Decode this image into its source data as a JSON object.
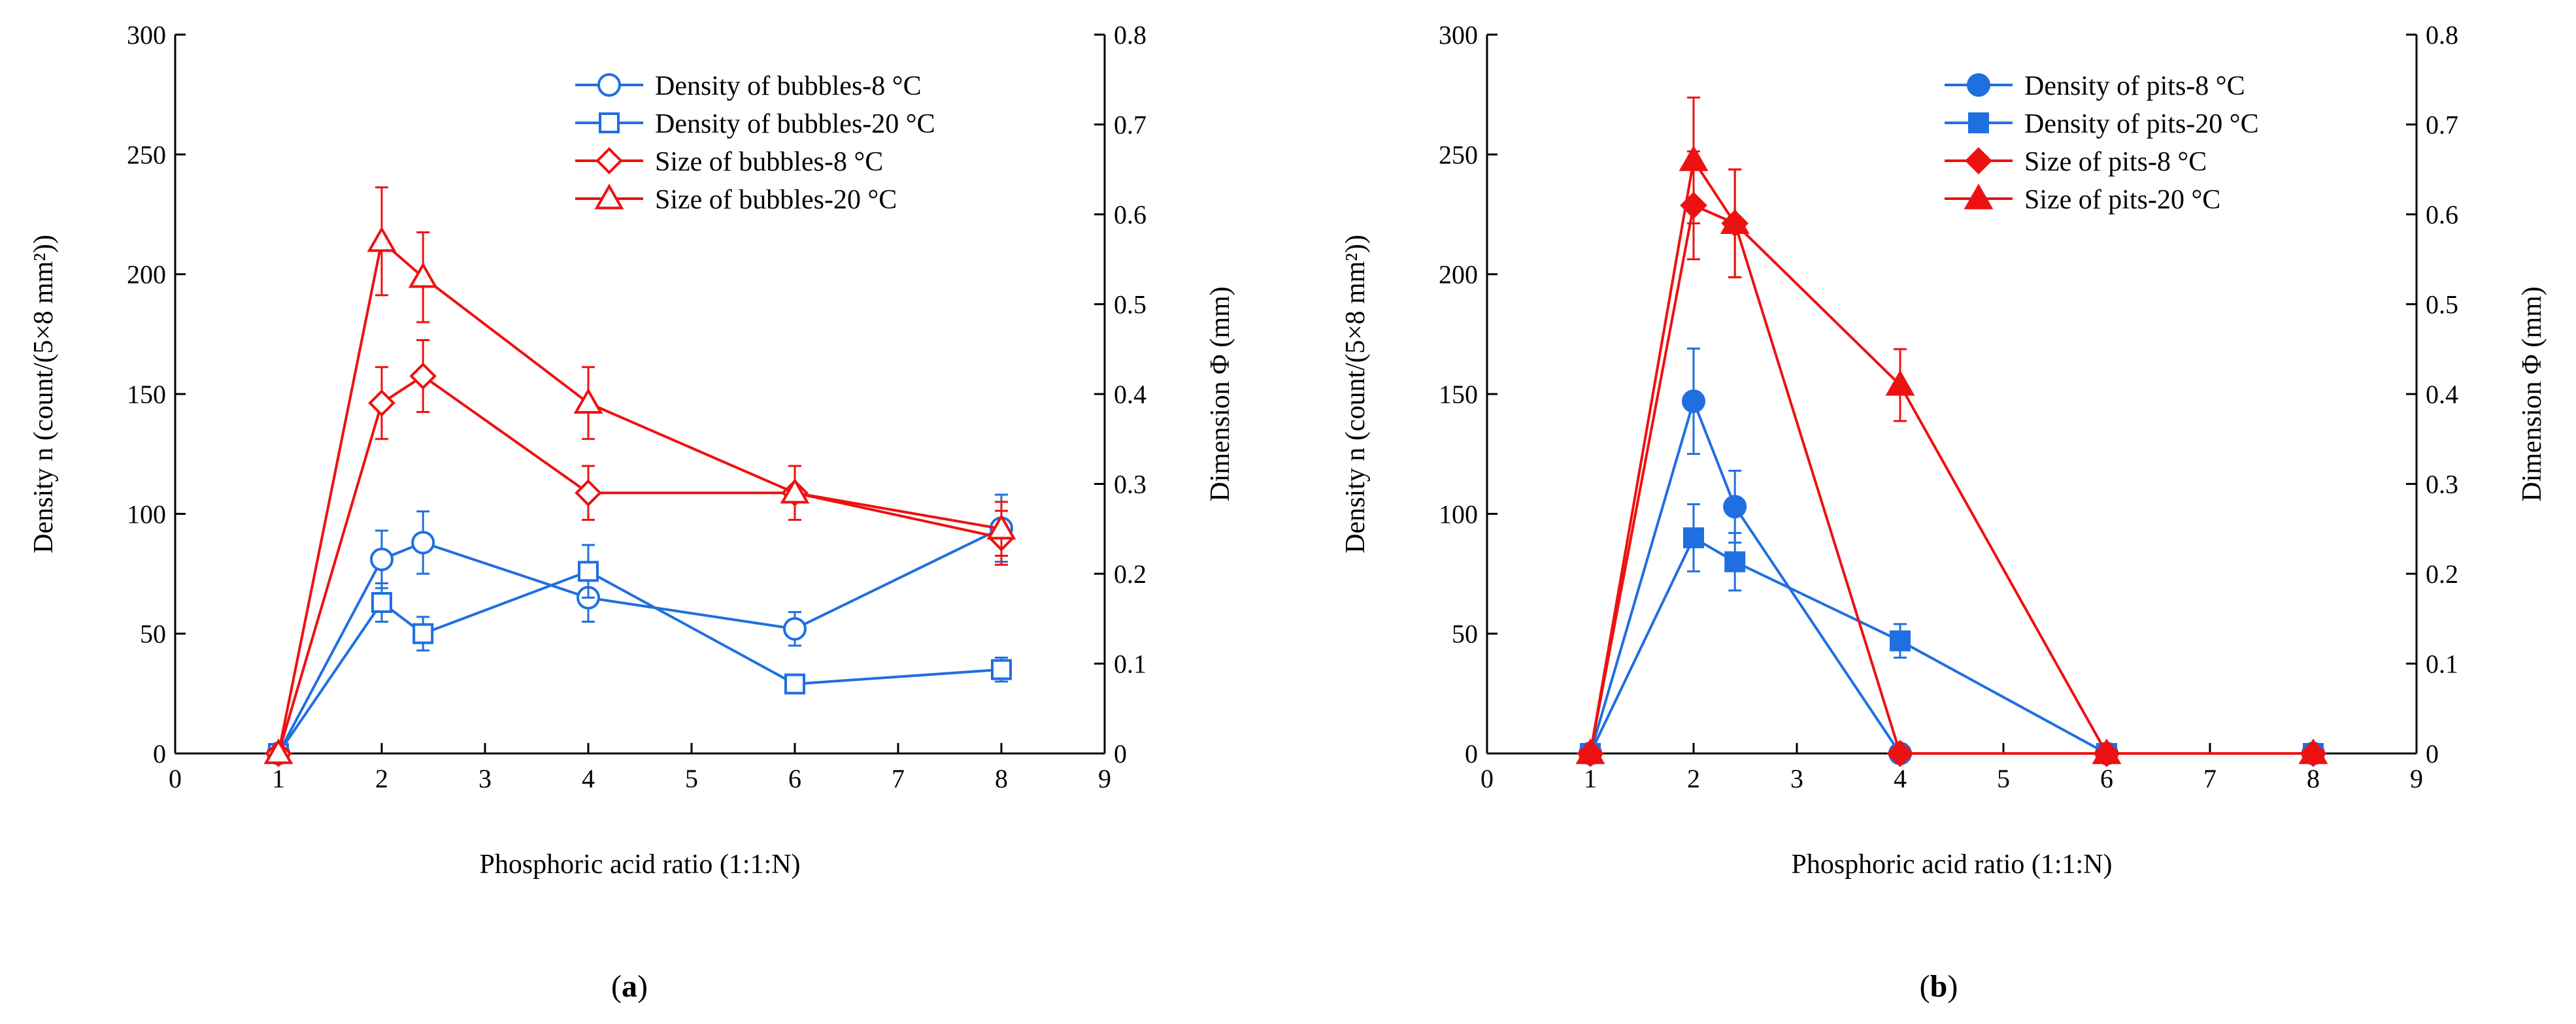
{
  "figure": {
    "panels": [
      {
        "label_open": "(",
        "label_letter": "a",
        "label_close": ")",
        "xlabel": "Phosphoric acid ratio (1:1:N)",
        "ylabel_left": "Density n (count/(5×8 mm²))",
        "ylabel_right": "Dimension Φ (mm)",
        "x_ticks": [
          "0",
          "1",
          "2",
          "3",
          "4",
          "5",
          "6",
          "7",
          "8",
          "9"
        ],
        "y_left_ticks": [
          "0",
          "50",
          "100",
          "150",
          "200",
          "250",
          "300"
        ],
        "y_right_ticks": [
          "0",
          "0.1",
          "0.2",
          "0.3",
          "0.4",
          "0.5",
          "0.6",
          "0.7",
          "0.8"
        ]
      },
      {
        "label_open": "(",
        "label_letter": "b",
        "label_close": ")",
        "xlabel": "Phosphoric acid ratio (1:1:N)",
        "ylabel_left": "Density n (count/(5×8 mm²))",
        "ylabel_right": "Dimension Φ (mm)",
        "x_ticks": [
          "0",
          "1",
          "2",
          "3",
          "4",
          "5",
          "6",
          "7",
          "8",
          "9"
        ],
        "y_left_ticks": [
          "0",
          "50",
          "100",
          "150",
          "200",
          "250",
          "300"
        ],
        "y_right_ticks": [
          "0",
          "0.1",
          "0.2",
          "0.3",
          "0.4",
          "0.5",
          "0.6",
          "0.7",
          "0.8"
        ]
      }
    ]
  },
  "colors": {
    "blue": "#1f6fe0",
    "red": "#ee1111",
    "axis": "#000000"
  },
  "chart_data": [
    {
      "type": "line",
      "xlabel": "Phosphoric acid ratio (1:1:N)",
      "ylabel": "Density n (count/(5×8 mm²))",
      "y2label": "Dimension Φ (mm)",
      "xlim": [
        0,
        9
      ],
      "ylim": [
        0,
        300
      ],
      "y2lim": [
        0,
        0.8
      ],
      "grid": false,
      "legend": "top-right",
      "series": [
        {
          "name": "Density of bubbles-8 °C",
          "axis": "left",
          "marker": "circle",
          "filled": false,
          "color": "blue",
          "x": [
            1,
            2,
            2.4,
            4,
            6,
            8
          ],
          "y": [
            0,
            81,
            88,
            65,
            52,
            94
          ],
          "err": [
            0,
            12,
            13,
            10,
            7,
            14
          ]
        },
        {
          "name": "Density of bubbles-20 °C",
          "axis": "left",
          "marker": "square",
          "filled": false,
          "color": "blue",
          "x": [
            1,
            2,
            2.4,
            4,
            6,
            8
          ],
          "y": [
            0,
            63,
            50,
            76,
            29,
            35
          ],
          "err": [
            0,
            8,
            7,
            11,
            3,
            5
          ]
        },
        {
          "name": "Size of bubbles-8 °C",
          "axis": "right",
          "marker": "diamond",
          "filled": false,
          "color": "red",
          "x": [
            1,
            2,
            2.4,
            4,
            6,
            8
          ],
          "y": [
            0,
            0.39,
            0.42,
            0.29,
            0.29,
            0.24
          ],
          "err": [
            0,
            0.04,
            0.04,
            0.03,
            0.03,
            0.03
          ]
        },
        {
          "name": "Size of bubbles-20 °C",
          "axis": "right",
          "marker": "triangle",
          "filled": false,
          "color": "red",
          "x": [
            1,
            2,
            2.4,
            4,
            6,
            8
          ],
          "y": [
            0,
            0.57,
            0.53,
            0.39,
            0.29,
            0.25
          ],
          "err": [
            0,
            0.06,
            0.05,
            0.04,
            0.03,
            0.03
          ]
        }
      ]
    },
    {
      "type": "line",
      "xlabel": "Phosphoric acid ratio (1:1:N)",
      "ylabel": "Density n (count/(5×8 mm²))",
      "y2label": "Dimension Φ (mm)",
      "xlim": [
        0,
        9
      ],
      "ylim": [
        0,
        300
      ],
      "y2lim": [
        0,
        0.8
      ],
      "grid": false,
      "legend": "top-right",
      "series": [
        {
          "name": "Density of pits-8 °C",
          "axis": "left",
          "marker": "circle",
          "filled": true,
          "color": "blue",
          "x": [
            1,
            2,
            2.4,
            4,
            6,
            8
          ],
          "y": [
            0,
            147,
            103,
            0,
            0,
            0
          ],
          "err": [
            0,
            22,
            15,
            0,
            0,
            0
          ]
        },
        {
          "name": "Density of pits-20 °C",
          "axis": "left",
          "marker": "square",
          "filled": true,
          "color": "blue",
          "x": [
            1,
            2,
            2.4,
            4,
            6,
            8
          ],
          "y": [
            0,
            90,
            80,
            47,
            0,
            0
          ],
          "err": [
            0,
            14,
            12,
            7,
            0,
            0
          ]
        },
        {
          "name": "Size of pits-8 °C",
          "axis": "right",
          "marker": "diamond",
          "filled": true,
          "color": "red",
          "x": [
            1,
            2,
            2.4,
            4,
            6,
            8
          ],
          "y": [
            0,
            0.61,
            0.59,
            0,
            0,
            0
          ],
          "err": [
            0,
            0.06,
            0.06,
            0,
            0,
            0
          ]
        },
        {
          "name": "Size of pits-20 °C",
          "axis": "right",
          "marker": "triangle",
          "filled": true,
          "color": "red",
          "x": [
            1,
            2,
            2.4,
            4,
            6,
            8
          ],
          "y": [
            0,
            0.66,
            0.59,
            0.41,
            0,
            0
          ],
          "err": [
            0,
            0.07,
            0.06,
            0.04,
            0,
            0
          ]
        }
      ]
    }
  ]
}
